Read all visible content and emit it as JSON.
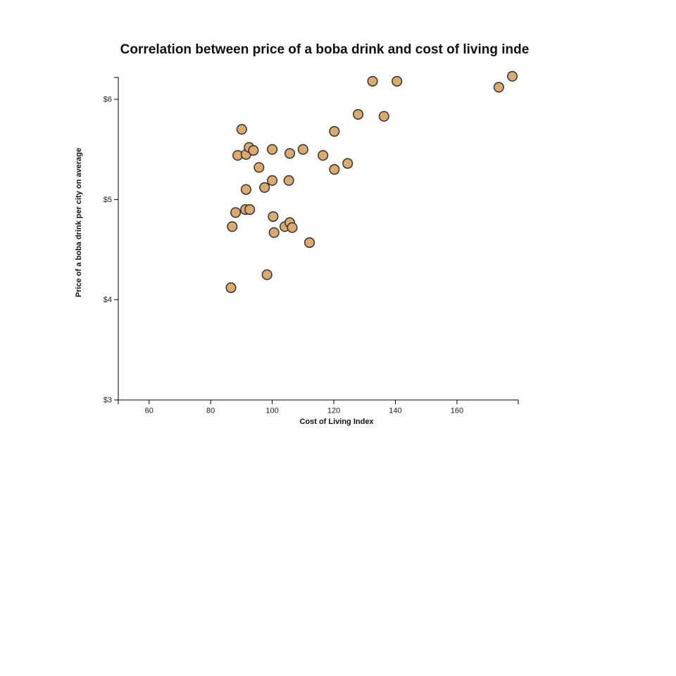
{
  "chart_data": {
    "type": "scatter",
    "title": "Correlation between price of a boba drink and cost of living inde",
    "xlabel": "Cost of Living Index",
    "ylabel": "Price of a boba drink per city on average",
    "xlim": [
      50,
      179.9
    ],
    "ylim": [
      3,
      6.22
    ],
    "x_ticks": [
      60,
      80,
      100,
      120,
      140,
      160
    ],
    "y_ticks": [
      3,
      4,
      5,
      6
    ],
    "y_tick_labels": [
      "$3",
      "$4",
      "$5",
      "$6"
    ],
    "grid": false,
    "legend": null,
    "marker": {
      "fill": "#DCA96F",
      "stroke": "#333333",
      "radius": 6.8,
      "stroke_width": 1.5
    },
    "axis_color": "#000000",
    "title_color": "#111111",
    "background": "#ffffff",
    "points": [
      [
        86.6,
        4.12
      ],
      [
        87.0,
        4.73
      ],
      [
        88.1,
        4.87
      ],
      [
        88.8,
        5.44
      ],
      [
        90.1,
        5.7
      ],
      [
        91.3,
        4.9
      ],
      [
        91.5,
        5.1
      ],
      [
        91.5,
        5.45
      ],
      [
        92.5,
        5.52
      ],
      [
        92.7,
        4.9
      ],
      [
        93.9,
        5.49
      ],
      [
        95.7,
        5.32
      ],
      [
        97.5,
        5.12
      ],
      [
        98.3,
        4.25
      ],
      [
        100.0,
        5.5
      ],
      [
        100.0,
        5.19
      ],
      [
        100.3,
        4.83
      ],
      [
        100.6,
        4.67
      ],
      [
        104.1,
        4.73
      ],
      [
        105.4,
        5.19
      ],
      [
        105.7,
        5.46
      ],
      [
        105.7,
        4.77
      ],
      [
        106.5,
        4.72
      ],
      [
        110.0,
        5.5
      ],
      [
        112.1,
        4.57
      ],
      [
        116.5,
        5.44
      ],
      [
        120.2,
        5.68
      ],
      [
        120.2,
        5.3
      ],
      [
        124.5,
        5.36
      ],
      [
        127.9,
        5.85
      ],
      [
        132.6,
        6.18
      ],
      [
        136.3,
        5.83
      ],
      [
        140.5,
        6.18
      ],
      [
        173.6,
        6.12
      ],
      [
        178.0,
        6.23
      ]
    ]
  }
}
